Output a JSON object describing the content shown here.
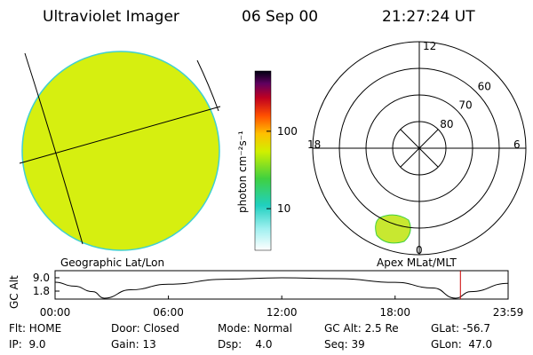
{
  "header": {
    "title": "Ultraviolet Imager",
    "date": "06 Sep 00",
    "time": "21:27:24 UT"
  },
  "colorbar": {
    "label": "photon cm⁻²s⁻¹",
    "scale": "log",
    "lim": [
      2.9,
      600
    ],
    "ticks": [
      10,
      100
    ]
  },
  "left_caption": "Geographic Lat/Lon",
  "polar": {
    "caption": "Apex MLat/MLT",
    "rlim": [
      90,
      50
    ],
    "rings": [
      80,
      70,
      60
    ],
    "hours": [
      "12",
      "6",
      "0",
      "18"
    ]
  },
  "altitude_plot": {
    "ylabel": "GC Alt",
    "xlim": [
      0,
      23.983
    ],
    "ylim": [
      -2.5,
      12.8
    ],
    "yticks": [
      {
        "value": 9,
        "label": "9.0"
      },
      1.8
    ],
    "xticks": [
      {
        "value": 0,
        "label": "00:00"
      },
      {
        "value": 6,
        "label": "06:00"
      },
      {
        "value": 12,
        "label": "12:00"
      },
      {
        "value": 18,
        "label": "18:00"
      },
      {
        "value": 23.983,
        "label": "23:59"
      }
    ],
    "x": [
      0,
      1,
      2,
      2.6,
      4,
      6,
      9,
      12,
      15,
      18,
      20,
      21.2,
      22,
      23.983
    ],
    "values": [
      6.6,
      4.5,
      1.5,
      -2,
      2.5,
      5.5,
      8.2,
      9,
      8.5,
      6.5,
      3.5,
      -2,
      1.5,
      6.0
    ],
    "marker": 21.457,
    "marker_color": "#cc0000"
  },
  "footer": [
    [
      "Flt: HOME",
      "Door: Closed",
      "Mode: Normal",
      "GC Alt: 2.5 Re",
      "GLat: -56.7"
    ],
    [
      "IP:  9.0",
      "Gain: 13",
      "Dsp:    4.0",
      "Seq: 39",
      "GLon:  47.0"
    ]
  ]
}
